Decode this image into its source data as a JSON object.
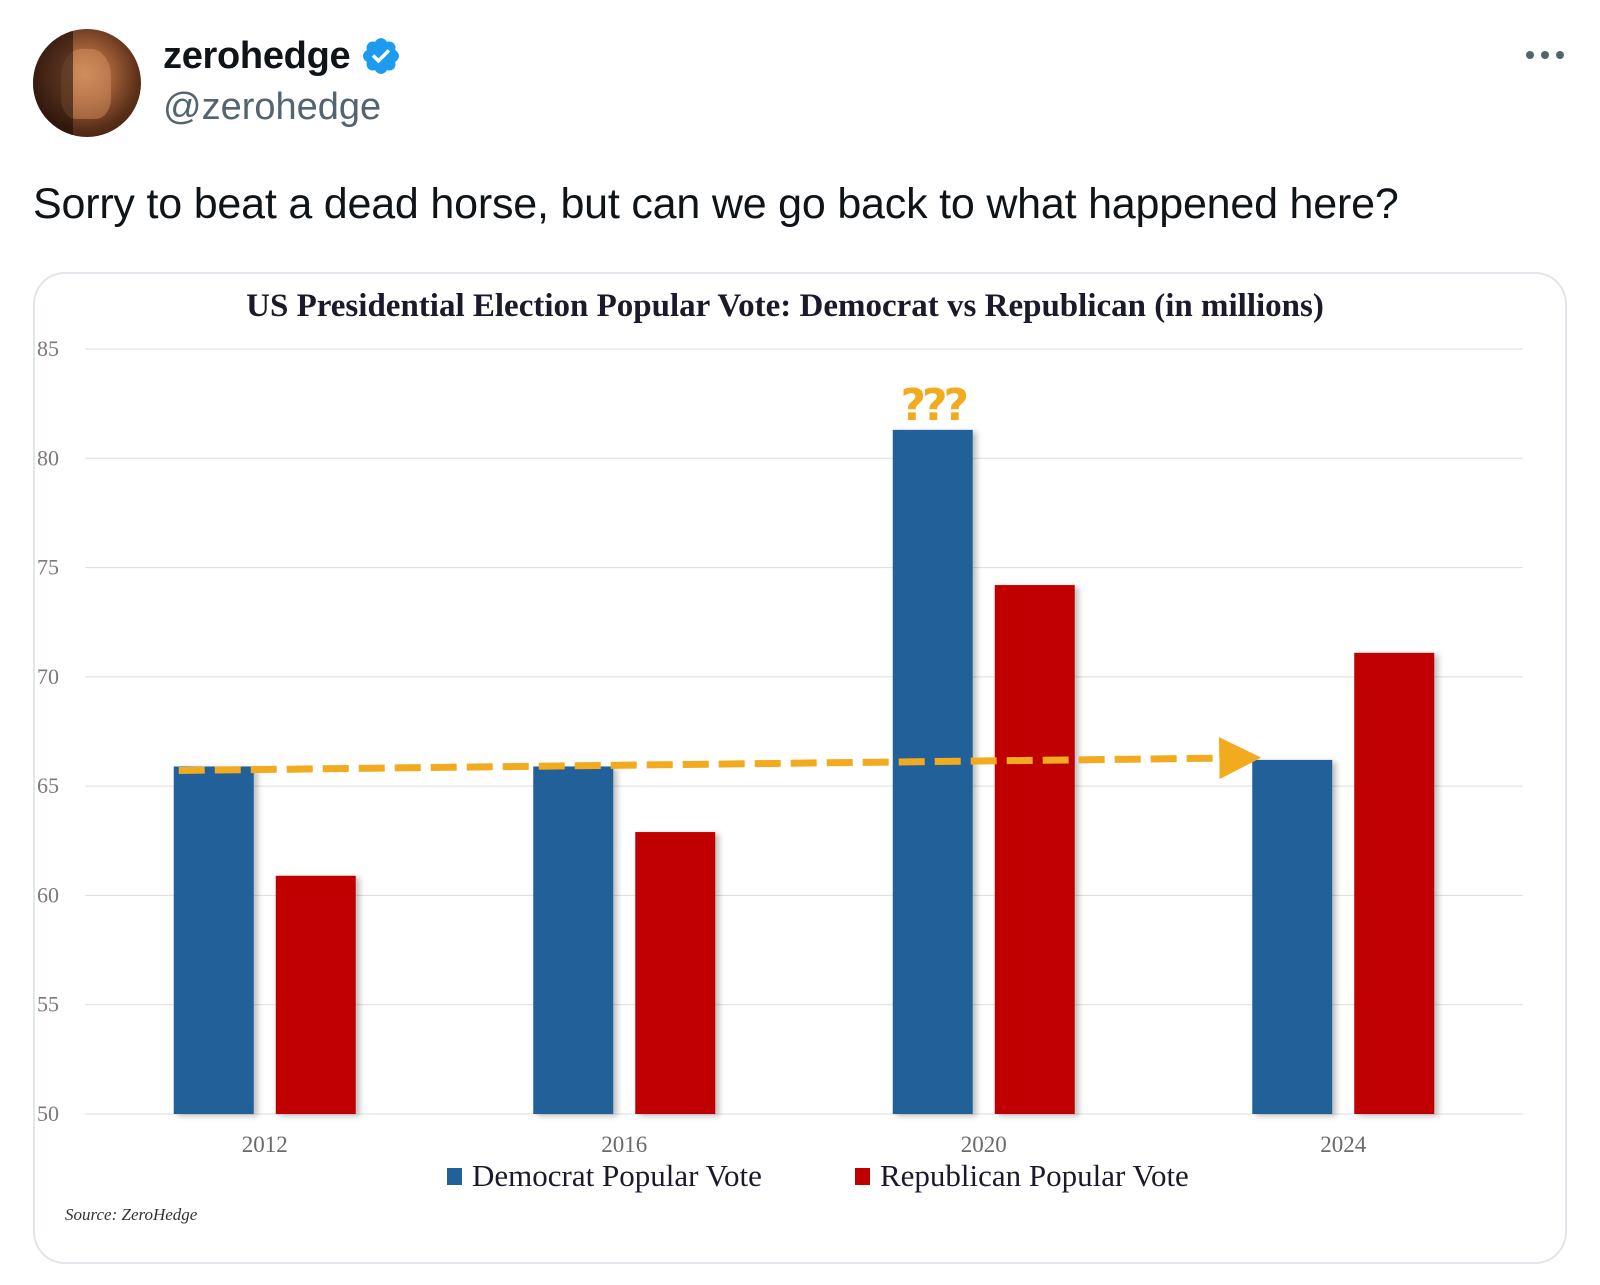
{
  "tweet": {
    "author_name": "zerohedge",
    "handle": "@zerohedge",
    "verified": true,
    "text": "Sorry to beat a dead horse, but can we go back to what happened here?",
    "icons": {
      "verified": "verified-badge-icon",
      "more": "more-options-icon",
      "avatar": "avatar"
    }
  },
  "chart_data": {
    "type": "bar",
    "title": "US Presidential Election Popular Vote: Democrat vs Republican (in millions)",
    "categories": [
      "2012",
      "2016",
      "2020",
      "2024"
    ],
    "series": [
      {
        "name": "Democrat Popular Vote",
        "color": "#22609a",
        "values": [
          65.9,
          65.9,
          81.3,
          66.2
        ]
      },
      {
        "name": "Republican Popular Vote",
        "color": "#c00000",
        "values": [
          60.9,
          62.9,
          74.2,
          71.1
        ]
      }
    ],
    "ylim": [
      50,
      85
    ],
    "yticks": [
      "50",
      "55",
      "60",
      "65",
      "70",
      "75",
      "80",
      "85"
    ],
    "grid": true,
    "legend_position": "bottom",
    "annotation": {
      "text": "???",
      "color": "#f2aa1e",
      "category": "2020"
    },
    "trend_arrow": {
      "style": "dashed",
      "color": "#f2aa1e",
      "from_category": "2012",
      "to_category": "2024",
      "from_value": 65.9,
      "to_value": 66.2
    },
    "source": "Source: ZeroHedge"
  }
}
